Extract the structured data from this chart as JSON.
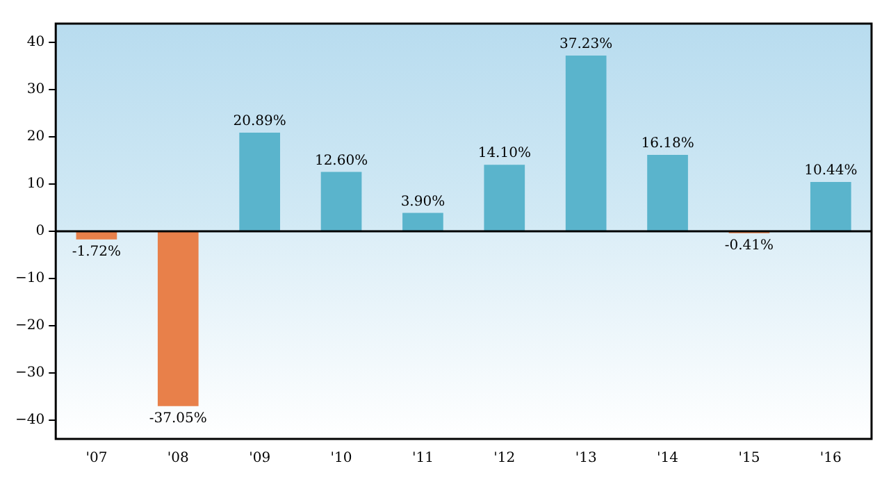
{
  "chart_data": {
    "type": "bar",
    "categories": [
      "'07",
      "'08",
      "'09",
      "'10",
      "'11",
      "'12",
      "'13",
      "'14",
      "'15",
      "'16"
    ],
    "values": [
      -1.72,
      -37.05,
      20.89,
      12.6,
      3.9,
      14.1,
      37.23,
      16.18,
      -0.41,
      10.44
    ],
    "colors": [
      "#e8804a",
      "#e8804a",
      "#5ab4cc",
      "#5ab4cc",
      "#5ab4cc",
      "#5ab4cc",
      "#5ab4cc",
      "#5ab4cc",
      "#e8804a",
      "#5ab4cc"
    ],
    "value_labels": [
      "-1.72%",
      "-37.05%",
      "20.89%",
      "12.60%",
      "3.90%",
      "14.10%",
      "37.23%",
      "16.18%",
      "-0.41%",
      "10.44%"
    ],
    "ylim": [
      -44,
      44
    ],
    "yticks": [
      {
        "value": -40,
        "label": "−40"
      },
      {
        "value": -30,
        "label": "−30"
      },
      {
        "value": -20,
        "label": "−20"
      },
      {
        "value": -10,
        "label": "−10"
      },
      0,
      10,
      20,
      30,
      40
    ],
    "ref_lines": [
      {
        "axis": "y",
        "value": 0,
        "color": "#000000"
      }
    ],
    "grid": false,
    "legend": false
  }
}
